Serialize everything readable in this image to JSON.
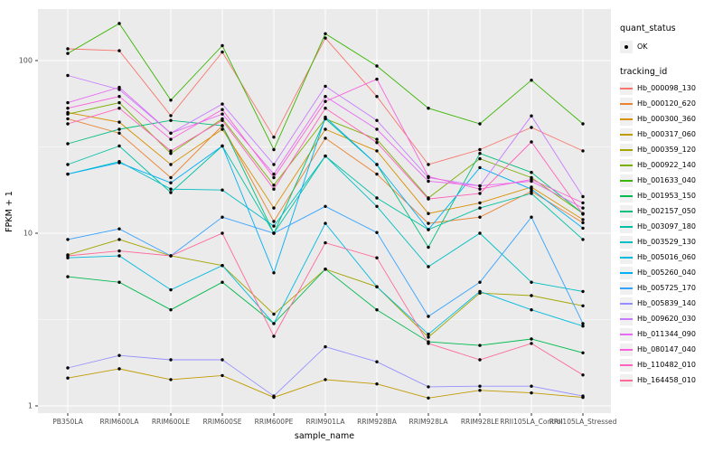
{
  "figure": {
    "background": "#FFFFFF",
    "panel_background": "#EBEBEB",
    "grid_color": "#FFFFFF",
    "tick_color": "#333333",
    "tick_label_color": "#4D4D4D",
    "axis_title_color": "#000000"
  },
  "axes": {
    "x_title": "sample_name",
    "y_title": "FPKM + 1",
    "y_tick_values": [
      1,
      10,
      100
    ],
    "y_tick_labels": [
      "1",
      "10",
      "100"
    ],
    "y_minor_values": [
      3.1623,
      31.623
    ]
  },
  "legend": {
    "quant_status_title": "quant_status",
    "ok_label": "OK",
    "tracking_title": "tracking_id",
    "key_background": "#F0F0F0"
  },
  "chart_data": {
    "type": "line",
    "title": "",
    "xlabel": "sample_name",
    "ylabel": "FPKM + 1",
    "y_scale": "log10",
    "ylim": [
      1,
      200
    ],
    "grid": true,
    "legend_position": "right",
    "point_color": "#000000",
    "categories": [
      "PB350LA",
      "RRIM600LA",
      "RRIM600LE",
      "RRIM600SE",
      "RRIM600PE",
      "RRIM901LA",
      "RRIM928BA",
      "RRIM928LA",
      "RRIM928LE",
      "RRII105LA_Control",
      "RRII105LA_Stressed"
    ],
    "series": [
      {
        "name": "Hb_000098_130",
        "color": "#F8766D",
        "values": [
          117,
          114,
          48,
          112,
          36,
          135,
          62,
          25,
          30.5,
          41,
          30
        ]
      },
      {
        "name": "Hb_000120_620",
        "color": "#EA8331",
        "values": [
          46,
          38,
          21,
          42,
          11.7,
          35.5,
          22,
          11.4,
          12.4,
          17.5,
          11.5
        ]
      },
      {
        "name": "Hb_000300_360",
        "color": "#D89000",
        "values": [
          50,
          44,
          25,
          40,
          14,
          40,
          30,
          13,
          15,
          18.5,
          12
        ]
      },
      {
        "name": "Hb_000317_060",
        "color": "#C09B00",
        "values": [
          1.45,
          1.64,
          1.42,
          1.5,
          1.12,
          1.42,
          1.34,
          1.11,
          1.23,
          1.19,
          1.12
        ]
      },
      {
        "name": "Hb_000359_120",
        "color": "#A3A500",
        "values": [
          7.5,
          9.2,
          7.4,
          6.5,
          3.4,
          6.2,
          4.9,
          2.5,
          4.5,
          4.35,
          3.8
        ]
      },
      {
        "name": "Hb_000922_140",
        "color": "#7CAE00",
        "values": [
          49,
          57,
          29,
          46,
          19,
          46,
          35,
          16,
          27,
          21,
          13
        ]
      },
      {
        "name": "Hb_001633_040",
        "color": "#39B600",
        "values": [
          110,
          164,
          59,
          122,
          30.5,
          143,
          93,
          53,
          43,
          77,
          43
        ]
      },
      {
        "name": "Hb_001953_150",
        "color": "#00BB4E",
        "values": [
          5.6,
          5.2,
          3.6,
          5.2,
          3.0,
          6.2,
          3.6,
          2.35,
          2.24,
          2.44,
          2.03
        ]
      },
      {
        "name": "Hb_002157_050",
        "color": "#00BF7D",
        "values": [
          33,
          40,
          45,
          42,
          10,
          46,
          25,
          8.3,
          29,
          22.5,
          13
        ]
      },
      {
        "name": "Hb_003097_180",
        "color": "#00C1A3",
        "values": [
          25,
          32,
          17.2,
          32,
          10,
          28,
          16,
          10.5,
          14,
          17,
          9.2
        ]
      },
      {
        "name": "Hb_003529_130",
        "color": "#00BFC4",
        "values": [
          22,
          26,
          18,
          17.8,
          11,
          28,
          14.3,
          6.4,
          10,
          5.2,
          4.6
        ]
      },
      {
        "name": "Hb_005016_060",
        "color": "#00BAE0",
        "values": [
          7.2,
          7.4,
          4.7,
          6.5,
          3.0,
          11.4,
          4.9,
          2.6,
          4.6,
          3.6,
          2.9
        ]
      },
      {
        "name": "Hb_005260_040",
        "color": "#00B0F6",
        "values": [
          22,
          25.6,
          19.6,
          32,
          5.9,
          47,
          25,
          10.5,
          24,
          18,
          10.7
        ]
      },
      {
        "name": "Hb_005725_170",
        "color": "#35A2FF",
        "values": [
          9.2,
          10.6,
          7.4,
          12.4,
          10,
          14.3,
          10.1,
          3.3,
          5.2,
          12.4,
          3.0
        ]
      },
      {
        "name": "Hb_005839_140",
        "color": "#9590FF",
        "values": [
          1.66,
          1.96,
          1.85,
          1.85,
          1.14,
          2.2,
          1.8,
          1.29,
          1.3,
          1.3,
          1.14
        ]
      },
      {
        "name": "Hb_009620_030",
        "color": "#C77CFF",
        "values": [
          82,
          68,
          38,
          56,
          25,
          71,
          45,
          21,
          18.8,
          47.8,
          16.3
        ]
      },
      {
        "name": "Hb_011344_090",
        "color": "#E76BF3",
        "values": [
          57,
          70,
          38,
          49,
          22,
          62,
          40,
          20,
          18.8,
          20,
          14
        ]
      },
      {
        "name": "Hb_080147_040",
        "color": "#FA62DB",
        "values": [
          53,
          62,
          35,
          52,
          21,
          58,
          78,
          21.3,
          18,
          20.5,
          15
        ]
      },
      {
        "name": "Hb_110482_010",
        "color": "#FF62BC",
        "values": [
          43,
          53,
          30,
          45,
          18,
          53,
          33.5,
          15.8,
          17,
          33.8,
          12.9
        ]
      },
      {
        "name": "Hb_164458_010",
        "color": "#FF6A98",
        "values": [
          7.4,
          7.9,
          7.4,
          10,
          2.53,
          8.8,
          7.2,
          2.3,
          1.85,
          2.3,
          1.51
        ]
      }
    ]
  }
}
